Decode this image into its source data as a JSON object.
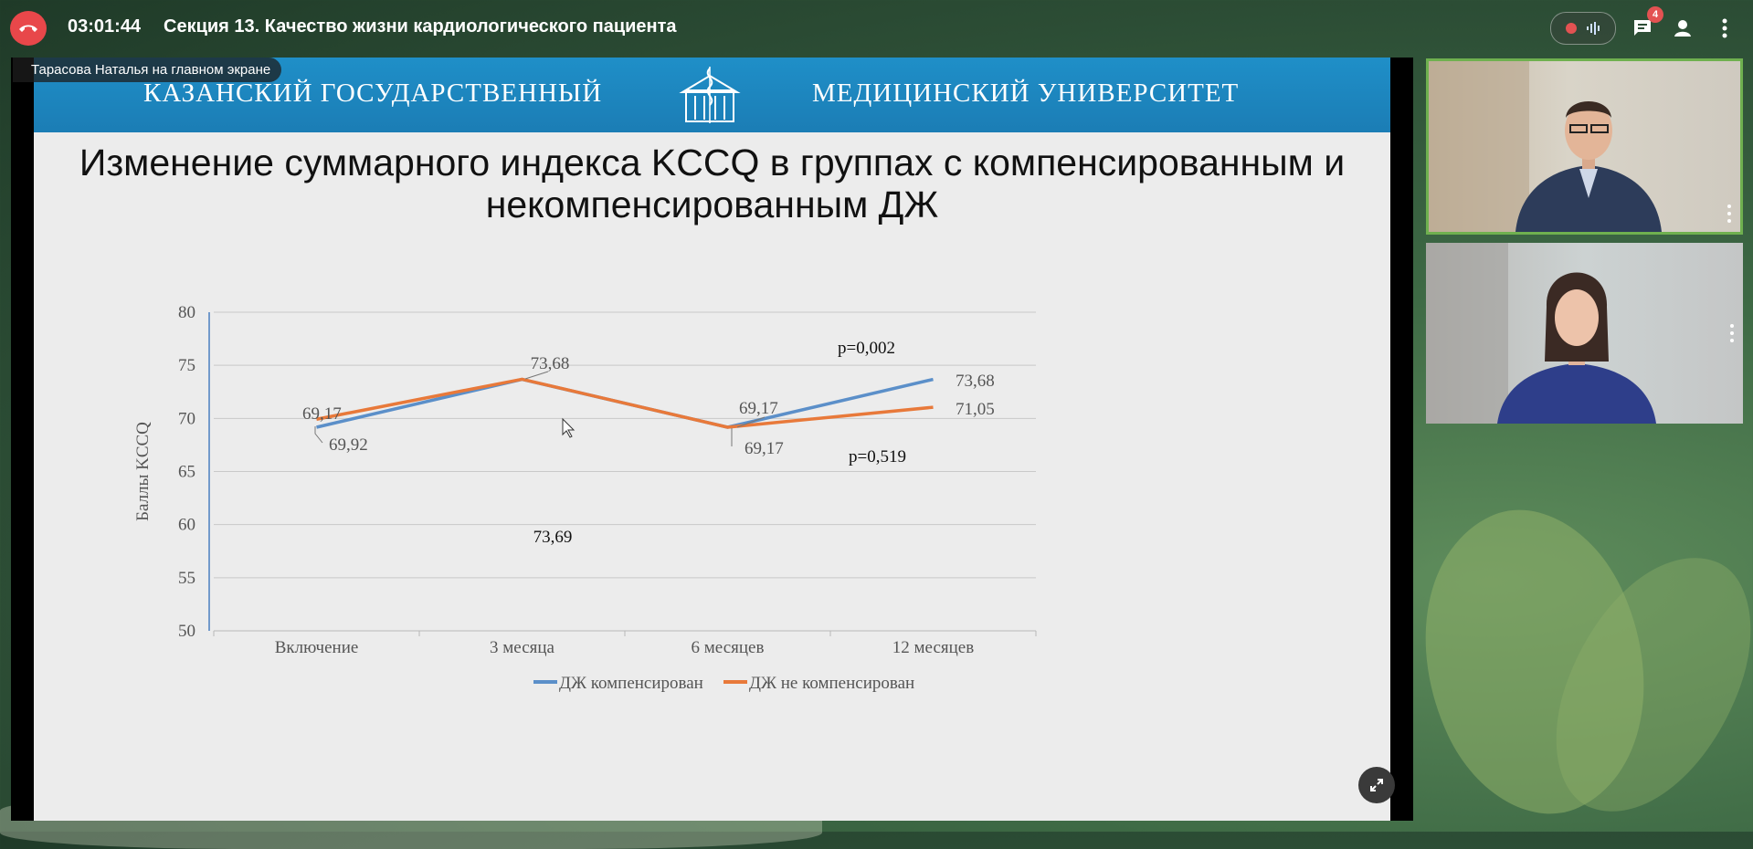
{
  "meeting": {
    "timer": "03:01:44",
    "title": "Секция 13. Качество жизни кардиологического пациента",
    "chat_badge": "4",
    "presenter_label": "Тарасова Наталья на главном экране"
  },
  "slide": {
    "banner_left": "КАЗАНСКИЙ ГОСУДАРСТВЕННЫЙ",
    "banner_right": "МЕДИЦИНСКИЙ УНИВЕРСИТЕТ",
    "title": "Изменение суммарного индекса KCCQ в группах с компенсированным и некомпенсированным ДЖ"
  },
  "colors": {
    "end_call": "#e8474a",
    "banner": "#1f8fc8",
    "series_blue": "#5b8fc9",
    "series_orange": "#e8793a",
    "active_tile_border": "#6fb04f"
  },
  "chart_data": {
    "type": "line",
    "categories": [
      "Включение",
      "3 месяца",
      "6 месяцев",
      "12 месяцев"
    ],
    "ylabel": "Баллы KCCQ",
    "ylim": [
      50,
      80
    ],
    "yticks": [
      50,
      55,
      60,
      65,
      70,
      75,
      80
    ],
    "grid": true,
    "legend_position": "bottom",
    "series": [
      {
        "name": "ДЖ компенсирован",
        "color": "#5b8fc9",
        "values": [
          69.17,
          73.68,
          69.17,
          73.68
        ]
      },
      {
        "name": "ДЖ не компенсирован",
        "color": "#e8793a",
        "values": [
          69.92,
          73.69,
          69.17,
          71.05
        ]
      }
    ],
    "data_labels": [
      {
        "text": "69,17"
      },
      {
        "text": "69,92"
      },
      {
        "text": "73,68"
      },
      {
        "text": "73,69"
      },
      {
        "text": "69,17"
      },
      {
        "text": "69,17"
      },
      {
        "text": "73,68"
      },
      {
        "text": "71,05"
      }
    ],
    "annotations": [
      {
        "text": "p=0,002"
      },
      {
        "text": "p=0,519"
      }
    ]
  },
  "icons": {
    "end_call": "phone-hangup-icon",
    "chat": "chat-icon",
    "people": "person-icon",
    "more": "more-vert-icon",
    "expand": "fullscreen-icon"
  }
}
